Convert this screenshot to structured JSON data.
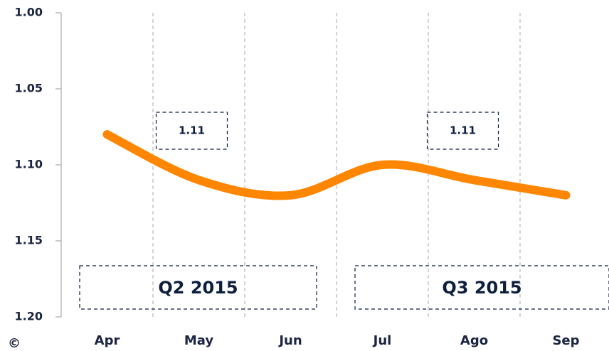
{
  "chart_data": {
    "type": "line",
    "categories": [
      "Apr",
      "May",
      "Jun",
      "Jul",
      "Ago",
      "Sep"
    ],
    "series": [
      {
        "color": "#ff8600",
        "values": [
          1.08,
          1.11,
          1.12,
          1.1,
          1.11,
          1.12
        ]
      }
    ],
    "ylim": [
      1.0,
      1.2
    ],
    "y_inverted": true,
    "yticks": [
      {
        "value": 1.0,
        "label": "1.00"
      },
      1.05,
      {
        "value": 1.1,
        "label": "1.10"
      },
      1.15,
      {
        "value": 1.2,
        "label": "1.20"
      }
    ],
    "grid": true,
    "annotations": [
      {
        "text": "1.11",
        "x": 1.5
      },
      {
        "text": "1.11",
        "x": 4.5
      }
    ],
    "periods": [
      {
        "label": "Q2 2015",
        "from": 0,
        "to": 3
      },
      {
        "label": "Q3 2015",
        "from": 3,
        "to": 6
      }
    ],
    "copyright": "©"
  }
}
